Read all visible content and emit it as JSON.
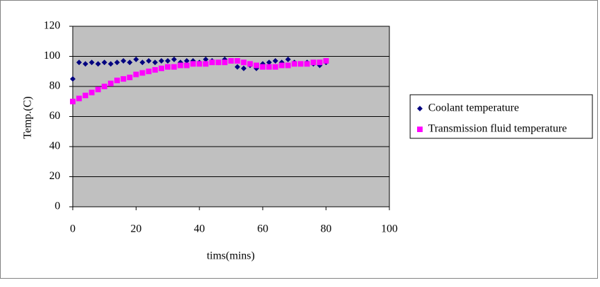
{
  "chart_data": {
    "type": "scatter",
    "xlabel": "tims(mins)",
    "ylabel": "Temp.(C)",
    "x": [
      0,
      2,
      4,
      6,
      8,
      10,
      12,
      14,
      16,
      18,
      20,
      22,
      24,
      26,
      28,
      30,
      32,
      34,
      36,
      38,
      40,
      42,
      44,
      46,
      48,
      50,
      52,
      54,
      56,
      58,
      60,
      62,
      64,
      66,
      68,
      70,
      72,
      74,
      76,
      78,
      80
    ],
    "series": [
      {
        "name": "Coolant temperature",
        "color": "#000080",
        "marker": "diamond",
        "values": [
          85,
          96,
          95,
          96,
          95,
          96,
          95,
          96,
          97,
          96,
          98,
          96,
          97,
          96,
          97,
          97,
          98,
          96,
          97,
          97,
          96,
          98,
          97,
          96,
          98,
          97,
          93,
          92,
          94,
          92,
          95,
          96,
          97,
          96,
          98,
          96,
          95,
          96,
          95,
          94,
          96
        ]
      },
      {
        "name": "Transmission fluid temperature",
        "color": "#ff00ff",
        "marker": "square",
        "values": [
          70,
          72,
          74,
          76,
          78,
          80,
          82,
          84,
          85,
          86,
          88,
          89,
          90,
          91,
          92,
          93,
          93,
          94,
          94,
          95,
          95,
          95,
          96,
          96,
          96,
          97,
          97,
          96,
          95,
          94,
          93,
          93,
          93,
          94,
          94,
          95,
          95,
          95,
          96,
          96,
          97
        ]
      }
    ],
    "xlim": [
      0,
      100
    ],
    "xticks": [
      0,
      20,
      40,
      60,
      80,
      100
    ],
    "ylim": [
      0,
      120
    ],
    "yticks": [
      0,
      20,
      40,
      60,
      80,
      100,
      120
    ],
    "grid": true,
    "plot_background": "#c0c0c0",
    "legend": "right"
  }
}
